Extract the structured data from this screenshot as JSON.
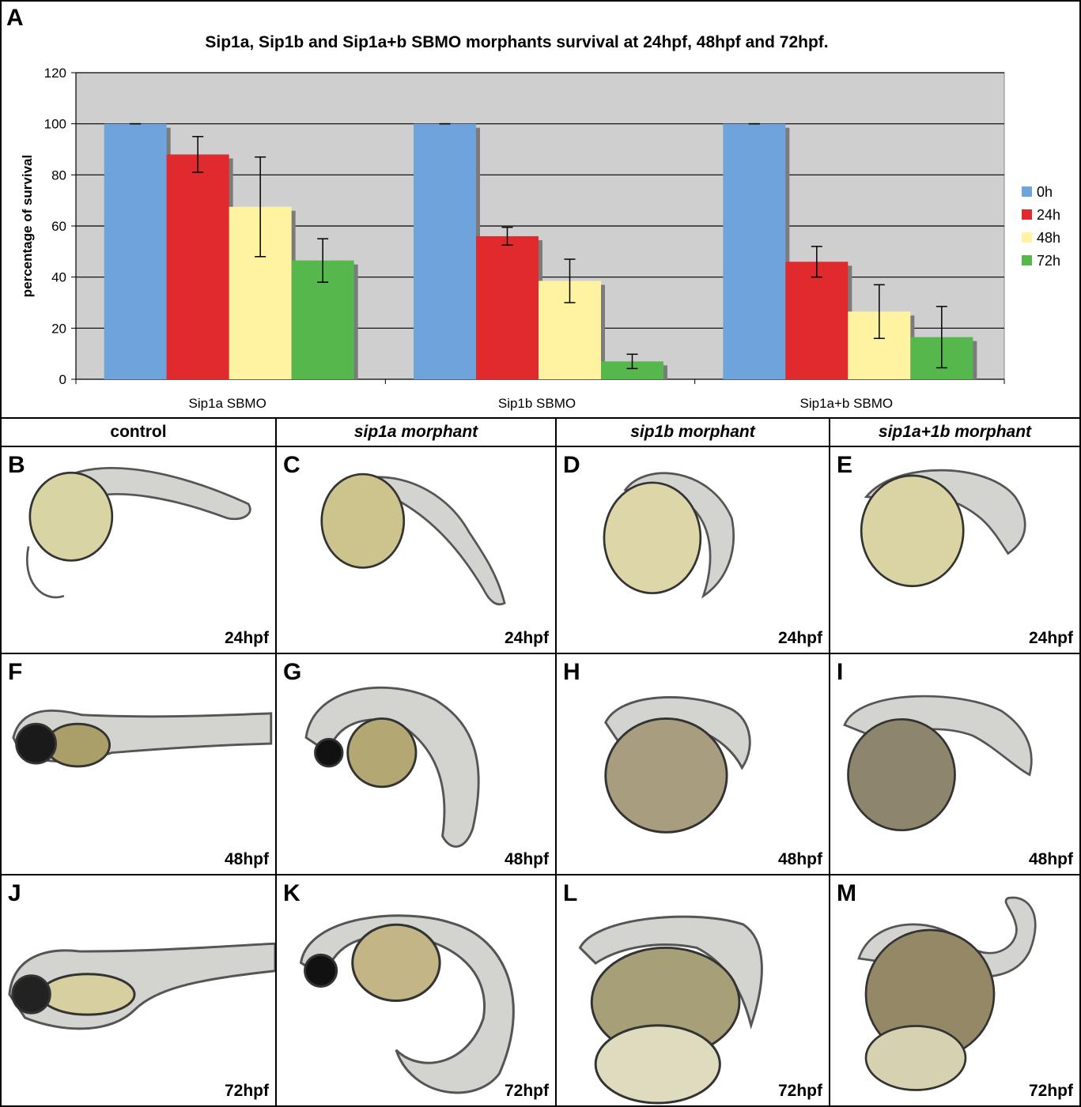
{
  "chart_panel": {
    "letter": "A",
    "chart_data": {
      "type": "bar",
      "title": "Sip1a, Sip1b and Sip1a+b SBMO morphants survival at 24hpf, 48hpf and 72hpf.",
      "xlabel": "",
      "ylabel": "percentage of survival",
      "ylim": [
        0,
        120
      ],
      "yticks": [
        0,
        20,
        40,
        60,
        80,
        100,
        120
      ],
      "categories": [
        "Sip1a SBMO",
        "Sip1b SBMO",
        "Sip1a+b SBMO"
      ],
      "series": [
        {
          "name": "0h",
          "color": "#6fa3dc",
          "values": [
            100,
            100,
            100
          ],
          "errors": [
            0,
            0,
            0
          ]
        },
        {
          "name": "24h",
          "color": "#e02a2e",
          "values": [
            88,
            56,
            46
          ],
          "errors": [
            7,
            3.5,
            6
          ]
        },
        {
          "name": "48h",
          "color": "#fff3a2",
          "values": [
            67.5,
            38.5,
            26.5
          ],
          "errors": [
            19.5,
            8.5,
            10.5
          ]
        },
        {
          "name": "72h",
          "color": "#56b84c",
          "values": [
            46.5,
            7,
            16.5
          ],
          "errors": [
            8.5,
            2.8,
            12
          ]
        }
      ],
      "grid": true,
      "legend": "right",
      "plot_background": "#cfcfd0"
    }
  },
  "column_headers": [
    "control",
    "sip1a morphant",
    "sip1b morphant",
    "sip1a+1b morphant"
  ],
  "panels": [
    {
      "letter": "B",
      "stage": "24hpf"
    },
    {
      "letter": "C",
      "stage": "24hpf"
    },
    {
      "letter": "D",
      "stage": "24hpf"
    },
    {
      "letter": "E",
      "stage": "24hpf"
    },
    {
      "letter": "F",
      "stage": "48hpf"
    },
    {
      "letter": "G",
      "stage": "48hpf"
    },
    {
      "letter": "H",
      "stage": "48hpf"
    },
    {
      "letter": "I",
      "stage": "48hpf"
    },
    {
      "letter": "J",
      "stage": "72hpf"
    },
    {
      "letter": "K",
      "stage": "72hpf"
    },
    {
      "letter": "L",
      "stage": "72hpf"
    },
    {
      "letter": "M",
      "stage": "72hpf"
    }
  ]
}
